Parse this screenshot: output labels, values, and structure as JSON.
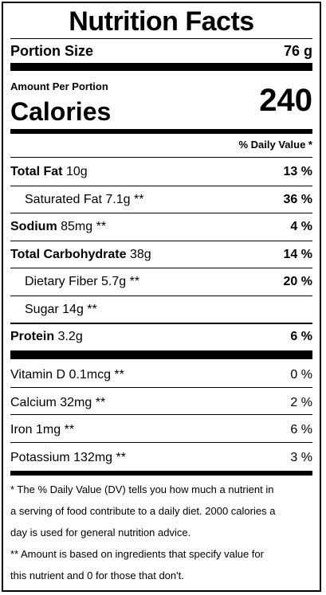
{
  "title": "Nutrition Facts",
  "portion": {
    "label": "Portion Size",
    "value": "76 g"
  },
  "amount_per_portion": "Amount Per Portion",
  "calories": {
    "label": "Calories",
    "value": "240"
  },
  "dv_header": "% Daily Value *",
  "nutrients": [
    {
      "name": "Total Fat",
      "amount": "10g",
      "dv": "13 %",
      "bold": true
    },
    {
      "name": "Saturated Fat",
      "amount": "7.1g **",
      "dv": "36 %",
      "bold": false
    },
    {
      "name": "Sodium",
      "amount": "85mg **",
      "dv": "4 %",
      "bold": true
    },
    {
      "name": "Total Carbohydrate",
      "amount": "38g",
      "dv": "14 %",
      "bold": true
    },
    {
      "name": "Dietary Fiber",
      "amount": "5.7g **",
      "dv": "20 %",
      "bold": false
    },
    {
      "name": "Sugar",
      "amount": "14g **",
      "dv": "",
      "bold": false
    },
    {
      "name": "Protein",
      "amount": "3.2g",
      "dv": "6 %",
      "bold": true
    }
  ],
  "vitamins": [
    {
      "name": "Vitamin D",
      "amount": "0.1mcg **",
      "dv": "0 %"
    },
    {
      "name": "Calcium",
      "amount": "32mg **",
      "dv": "2 %"
    },
    {
      "name": "Iron",
      "amount": "1mg **",
      "dv": "6 %"
    },
    {
      "name": "Potassium",
      "amount": "132mg **",
      "dv": "3 %"
    }
  ],
  "footnotes": [
    "* The % Daily Value (DV) tells you how much a nutrient in",
    "a serving of food contribute to a daily diet. 2000 calories a",
    "day is used for general nutrition advice.",
    "** Amount is based on ingredients that specify value for",
    "this nutrient and 0 for those that don't."
  ]
}
